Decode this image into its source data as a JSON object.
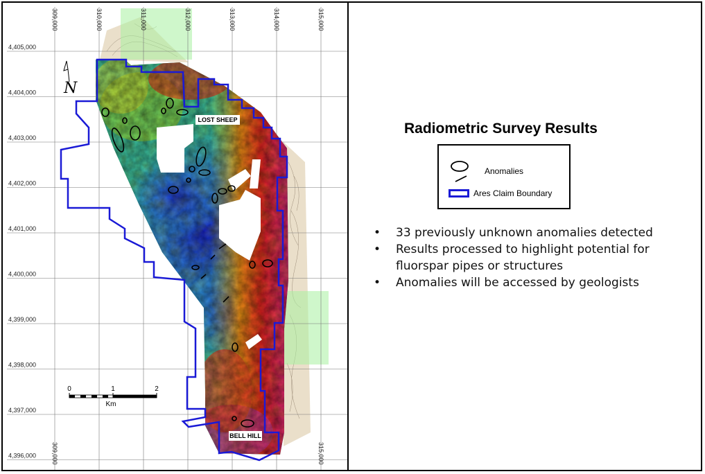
{
  "title": "Radiometric Survey Results",
  "legend": {
    "anomalies_label": "Anomalies",
    "claim_label": "Ares Claim Boundary",
    "claim_color": "#1a1ad6"
  },
  "bullets": [
    "33 previously unknown anomalies detected",
    "Results processed to highlight potential for fluorspar pipes or structures",
    "Anomalies will be accessed by geologists"
  ],
  "map": {
    "easting_labels": [
      "309,000",
      "310,000",
      "311,000",
      "312,000",
      "313,000",
      "314,000",
      "315,000"
    ],
    "northing_labels": [
      "4,405,000",
      "4,404,000",
      "4,403,000",
      "4,402,000",
      "4,401,000",
      "4,400,000",
      "4,399,000",
      "4,398,000",
      "4,397,000",
      "4,396,000"
    ],
    "bottom_labels": [
      "309,000",
      "315,000"
    ],
    "place_names": {
      "lost_sheep": "LOST SHEEP",
      "bell_hill": "BELL HILL"
    },
    "scale_bar": {
      "ticks": [
        "0",
        "1",
        "2"
      ],
      "unit": "Km"
    },
    "north_arrow_letter": "N"
  }
}
